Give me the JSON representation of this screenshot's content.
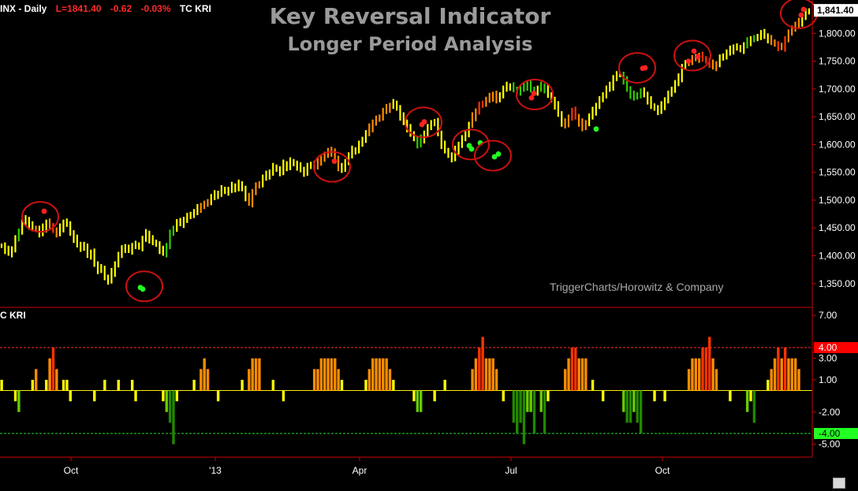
{
  "header": {
    "symbol": "INX - Daily",
    "last": "L=1841.40",
    "change": "-0.62",
    "change_pct": "-0.03%",
    "indicator": "TC KRI"
  },
  "title": "Key Reversal Indicator",
  "subtitle": "Longer Period Analysis",
  "watermark": "TriggerCharts/Horowitz & Company",
  "subpanel_label": "C KRI",
  "colors": {
    "background": "#000000",
    "axis": "#cc0000",
    "price_up": "#ffff00",
    "price_warm": "#ff8c00",
    "price_hot": "#ff3300",
    "price_cool": "#33cc00",
    "buy_dot": "#22ff22",
    "sell_dot": "#ff2222",
    "circle": "#cc1111",
    "upper_threshold": "#ff2a2a",
    "lower_threshold": "#22dd22"
  },
  "chart_data": [
    {
      "type": "bar",
      "name": "price",
      "ylim": [
        1310,
        1860
      ],
      "yticks": [
        "1,350.00",
        "1,400.00",
        "1,450.00",
        "1,500.00",
        "1,550.00",
        "1,600.00",
        "1,650.00",
        "1,700.00",
        "1,750.00",
        "1,800.00"
      ],
      "last_label": "1,841.40",
      "xticks": [
        "Oct",
        "'13",
        "Apr",
        "Jul",
        "Oct"
      ],
      "series": [
        {
          "values": [
            1418,
            1410,
            1405,
            1412,
            1430,
            1445,
            1460,
            1465,
            1455,
            1450,
            1448,
            1440,
            1450,
            1460,
            1455,
            1445,
            1440,
            1450,
            1460,
            1458,
            1440,
            1430,
            1420,
            1415,
            1418,
            1400,
            1405,
            1385,
            1375,
            1378,
            1360,
            1355,
            1370,
            1385,
            1400,
            1415,
            1412,
            1410,
            1418,
            1420,
            1415,
            1430,
            1440,
            1430,
            1425,
            1420,
            1410,
            1405,
            1418,
            1440,
            1450,
            1460,
            1458,
            1465,
            1470,
            1475,
            1478,
            1485,
            1490,
            1492,
            1498,
            1505,
            1510,
            1512,
            1520,
            1515,
            1518,
            1525,
            1522,
            1530,
            1520,
            1505,
            1495,
            1515,
            1525,
            1530,
            1540,
            1545,
            1550,
            1560,
            1555,
            1550,
            1565,
            1560,
            1570,
            1565,
            1560,
            1555,
            1550,
            1560,
            1565,
            1560,
            1570,
            1575,
            1580,
            1590,
            1585,
            1575,
            1560,
            1555,
            1570,
            1580,
            1590,
            1590,
            1600,
            1610,
            1620,
            1630,
            1640,
            1645,
            1650,
            1660,
            1665,
            1670,
            1675,
            1665,
            1650,
            1640,
            1630,
            1620,
            1610,
            1600,
            1610,
            1620,
            1630,
            1640,
            1640,
            1620,
            1600,
            1590,
            1580,
            1575,
            1590,
            1600,
            1610,
            1620,
            1635,
            1650,
            1660,
            1670,
            1675,
            1680,
            1685,
            1690,
            1680,
            1690,
            1700,
            1705,
            1705,
            1700,
            1695,
            1700,
            1705,
            1710,
            1700,
            1695,
            1700,
            1705,
            1700,
            1690,
            1680,
            1670,
            1655,
            1640,
            1635,
            1650,
            1660,
            1650,
            1640,
            1630,
            1640,
            1650,
            1660,
            1670,
            1680,
            1690,
            1700,
            1705,
            1720,
            1725,
            1725,
            1715,
            1700,
            1690,
            1685,
            1690,
            1695,
            1690,
            1680,
            1670,
            1665,
            1660,
            1670,
            1680,
            1690,
            1700,
            1710,
            1720,
            1740,
            1745,
            1750,
            1755,
            1755,
            1760,
            1755,
            1750,
            1745,
            1740,
            1745,
            1755,
            1760,
            1765,
            1770,
            1775,
            1775,
            1770,
            1778,
            1785,
            1790,
            1790,
            1795,
            1800,
            1795,
            1790,
            1785,
            1780,
            1775,
            1775,
            1790,
            1800,
            1810,
            1815,
            1820,
            1830,
            1838,
            1841
          ]
        }
      ]
    },
    {
      "type": "bar",
      "name": "TC KRI",
      "ylim": [
        -6.2,
        7.6
      ],
      "yticks": [
        "7.00",
        "3.00",
        "1.00",
        "-2.00",
        "-5.00"
      ],
      "threshold_labels": [
        "4.00",
        "-4.00"
      ],
      "thresholds": [
        4,
        -4
      ],
      "series": [
        {
          "values": [
            1,
            0,
            0,
            0,
            -1,
            -2,
            0,
            0,
            0,
            1,
            2,
            0,
            0,
            1,
            3,
            4,
            2,
            0,
            1,
            1,
            -1,
            0,
            0,
            0,
            0,
            0,
            0,
            -1,
            0,
            0,
            1,
            0,
            0,
            0,
            1,
            0,
            0,
            0,
            1,
            -1,
            0,
            0,
            0,
            0,
            0,
            0,
            0,
            -1,
            -2,
            -3,
            -5,
            -1,
            0,
            0,
            0,
            0,
            1,
            0,
            2,
            3,
            2,
            0,
            0,
            -1,
            0,
            0,
            0,
            0,
            0,
            0,
            1,
            0,
            2,
            3,
            3,
            3,
            0,
            0,
            0,
            1,
            0,
            0,
            -1,
            0,
            0,
            0,
            0,
            0,
            0,
            0,
            0,
            2,
            2,
            3,
            3,
            3,
            3,
            3,
            2,
            1,
            0,
            0,
            0,
            0,
            0,
            0,
            1,
            2,
            3,
            3,
            3,
            3,
            3,
            2,
            1,
            0,
            0,
            0,
            0,
            0,
            -1,
            -2,
            -2,
            0,
            0,
            0,
            -1,
            0,
            0,
            1,
            0,
            0,
            0,
            0,
            0,
            0,
            0,
            2,
            3,
            4,
            5,
            3,
            3,
            3,
            2,
            0,
            -1,
            0,
            0,
            -3,
            -4,
            -3,
            -5,
            -2,
            -2,
            -4,
            0,
            -2,
            -4,
            -1,
            0,
            0,
            0,
            0,
            2,
            3,
            4,
            4,
            3,
            3,
            3,
            0,
            1,
            0,
            0,
            -1,
            0,
            0,
            0,
            0,
            0,
            -2,
            -3,
            -3,
            -2,
            -3,
            -4,
            0,
            0,
            0,
            -1,
            0,
            0,
            -1,
            0,
            0,
            0,
            0,
            0,
            0,
            2,
            3,
            3,
            3,
            4,
            4,
            5,
            3,
            2,
            0,
            0,
            0,
            -1,
            0,
            0,
            0,
            0,
            -2,
            -1,
            -3,
            0,
            0,
            0,
            1,
            2,
            3,
            4,
            3,
            4,
            3,
            3,
            3,
            2,
            0,
            0,
            0,
            0,
            2,
            2,
            3,
            3,
            2,
            0,
            1,
            0,
            0,
            0,
            0,
            0,
            0,
            0,
            1,
            0,
            3,
            5,
            4
          ]
        }
      ],
      "extremes_marker": {
        "buy_dots": [
          [
            178,
            1343
          ],
          [
            181,
            1340
          ],
          [
            595,
            1598
          ],
          [
            598,
            1592
          ],
          [
            609,
            1603
          ],
          [
            627,
            1578
          ],
          [
            632,
            1583
          ],
          [
            756,
            1628
          ]
        ],
        "sell_dots": [
          [
            56,
            1480
          ],
          [
            424,
            1570
          ],
          [
            535,
            1636
          ],
          [
            538,
            1641
          ],
          [
            674,
            1684
          ],
          [
            677,
            1692
          ],
          [
            815,
            1737
          ],
          [
            818,
            1738
          ],
          [
            873,
            1750
          ],
          [
            880,
            1768
          ],
          [
            885,
            1758
          ],
          [
            1016,
            1833
          ],
          [
            1019,
            1843
          ]
        ]
      }
    }
  ]
}
